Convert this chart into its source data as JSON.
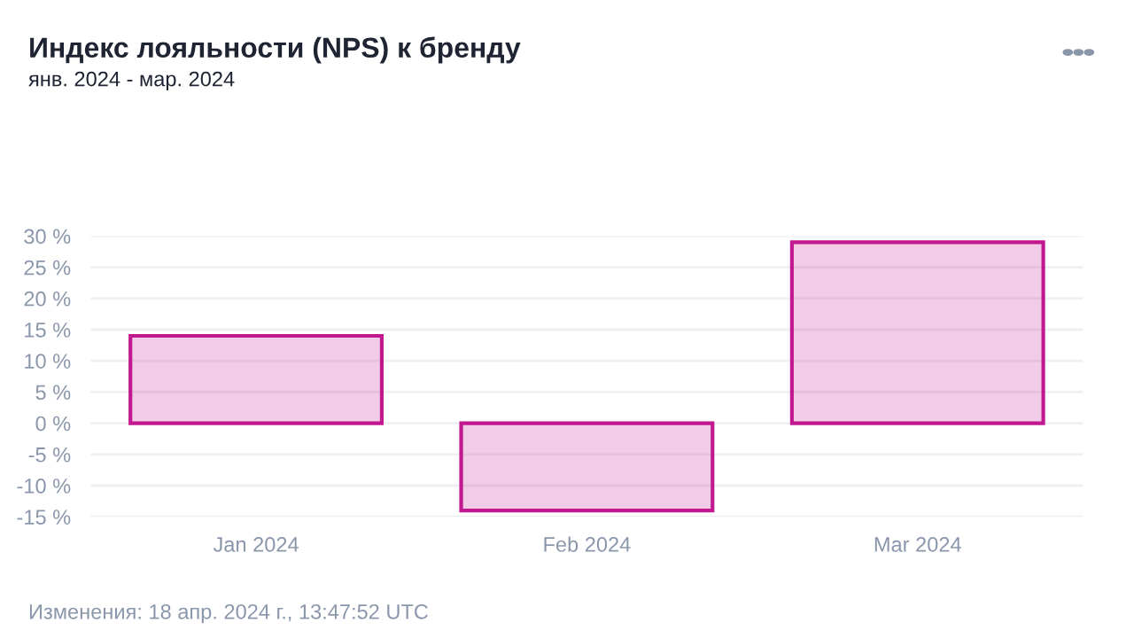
{
  "chart_data": {
    "type": "bar",
    "title": "Индекс лояльности (NPS) к бренду",
    "subtitle": "янв. 2024 - мар. 2024",
    "categories": [
      "Jan 2024",
      "Feb 2024",
      "Mar 2024"
    ],
    "series": [
      {
        "color": "#c2188f",
        "values": [
          14,
          -14,
          29
        ]
      }
    ],
    "ylim": [
      -15,
      30
    ],
    "yticks": [
      {
        "value": -15,
        "label": "-15 %"
      },
      {
        "value": -10,
        "label": "-10 %"
      },
      {
        "value": -5,
        "label": "-5 %"
      },
      {
        "value": 0,
        "label": "0 %"
      },
      {
        "value": 5,
        "label": "5 %"
      },
      {
        "value": 10,
        "label": "10 %"
      },
      {
        "value": 15,
        "label": "15 %"
      },
      {
        "value": 20,
        "label": "20 %"
      },
      {
        "value": 25,
        "label": "25 %"
      },
      {
        "value": 30,
        "label": "30 %"
      }
    ],
    "grid": "y",
    "annotations": [
      "Изменения: 18 апр. 2024 г., 13:47:52 UTC"
    ]
  }
}
